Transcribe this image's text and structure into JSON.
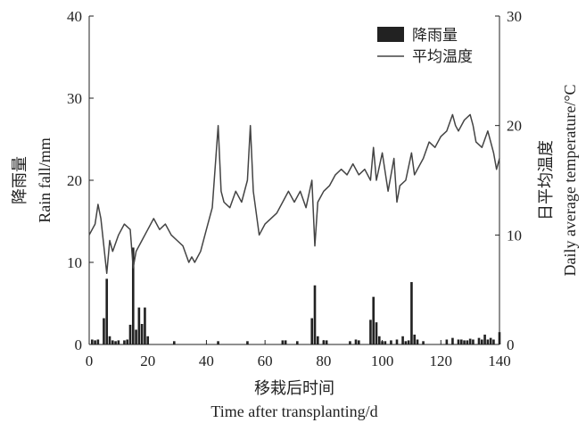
{
  "chart_data": {
    "type": "bar+line",
    "title": "",
    "xlabel_cn": "移栽后时间",
    "xlabel_en": "Time after transplanting/d",
    "ylabel_left_cn": "降雨量",
    "ylabel_left_en": "Rain fall/mm",
    "ylabel_right_cn": "日平均温度",
    "ylabel_right_en": "Daily average temperature/°C",
    "xlim": [
      0,
      140
    ],
    "ylim_left": [
      0,
      40
    ],
    "ylim_right": [
      0,
      30
    ],
    "x_ticks": [
      0,
      20,
      40,
      60,
      80,
      100,
      120,
      140
    ],
    "y_left_ticks": [
      0,
      10,
      20,
      30,
      40
    ],
    "y_right_ticks": [
      0,
      10,
      20,
      30
    ],
    "legend": {
      "position": "top-right",
      "rain_label": "降雨量",
      "temp_label": "平均温度"
    },
    "colors": {
      "bar": "#222222",
      "line": "#444444",
      "axis": "#222222"
    },
    "series": [
      {
        "name": "降雨量",
        "axis": "left",
        "kind": "bar",
        "x": [
          1,
          2,
          3,
          5,
          6,
          7,
          8,
          9,
          10,
          12,
          13,
          14,
          15,
          16,
          17,
          18,
          19,
          20,
          29,
          44,
          54,
          66,
          67,
          71,
          76,
          77,
          78,
          80,
          81,
          89,
          91,
          92,
          96,
          97,
          98,
          99,
          100,
          101,
          103,
          105,
          107,
          108,
          109,
          110,
          111,
          112,
          114,
          122,
          124,
          126,
          127,
          128,
          129,
          130,
          131,
          133,
          134,
          135,
          136,
          137,
          138,
          140
        ],
        "values": [
          0.6,
          0.5,
          0.6,
          3.2,
          8.0,
          1.0,
          0.5,
          0.4,
          0.5,
          0.5,
          0.6,
          2.4,
          11.8,
          1.8,
          4.5,
          2.5,
          4.5,
          1.0,
          0.4,
          0.4,
          0.4,
          0.5,
          0.5,
          0.4,
          3.2,
          7.2,
          1.0,
          0.5,
          0.5,
          0.4,
          0.6,
          0.5,
          3.0,
          5.8,
          2.7,
          1.0,
          0.4,
          0.4,
          0.5,
          0.6,
          1.0,
          0.4,
          0.5,
          7.6,
          1.2,
          0.6,
          0.4,
          0.6,
          0.8,
          0.6,
          0.6,
          0.5,
          0.5,
          0.7,
          0.6,
          0.8,
          0.6,
          1.2,
          0.6,
          0.8,
          0.6,
          1.5
        ]
      },
      {
        "name": "平均温度",
        "axis": "right",
        "kind": "line",
        "x": [
          0,
          2,
          3,
          4,
          5,
          6,
          7,
          8,
          10,
          12,
          14,
          15,
          16,
          18,
          20,
          22,
          24,
          26,
          28,
          30,
          32,
          34,
          35,
          36,
          38,
          40,
          42,
          44,
          45,
          46,
          48,
          50,
          52,
          54,
          55,
          56,
          58,
          60,
          62,
          64,
          66,
          68,
          70,
          72,
          74,
          76,
          77,
          78,
          80,
          82,
          84,
          86,
          88,
          90,
          92,
          94,
          96,
          97,
          98,
          100,
          102,
          104,
          105,
          106,
          108,
          110,
          111,
          112,
          114,
          116,
          118,
          120,
          122,
          124,
          125,
          126,
          128,
          130,
          131,
          132,
          134,
          136,
          138,
          139,
          140
        ],
        "values": [
          10.0,
          11.0,
          12.8,
          11.5,
          9.0,
          6.5,
          9.5,
          8.5,
          10.0,
          11.0,
          10.5,
          7.0,
          8.5,
          9.5,
          10.5,
          11.5,
          10.5,
          11.0,
          10.0,
          9.5,
          9.0,
          7.5,
          8.0,
          7.5,
          8.5,
          10.5,
          12.5,
          20.0,
          14.0,
          13.0,
          12.5,
          14.0,
          13.0,
          15.0,
          20.0,
          14.0,
          10.0,
          11.0,
          11.5,
          12.0,
          13.0,
          14.0,
          13.0,
          14.0,
          12.5,
          15.0,
          9.0,
          13.0,
          14.0,
          14.5,
          15.5,
          16.0,
          15.5,
          16.5,
          15.5,
          16.0,
          15.0,
          18.0,
          15.0,
          17.5,
          14.0,
          17.0,
          13.0,
          14.5,
          15.0,
          17.5,
          15.5,
          16.0,
          17.0,
          18.5,
          18.0,
          19.0,
          19.5,
          21.0,
          20.0,
          19.5,
          20.5,
          21.0,
          20.0,
          18.5,
          18.0,
          19.5,
          17.5,
          16.0,
          17.0
        ]
      }
    ]
  }
}
